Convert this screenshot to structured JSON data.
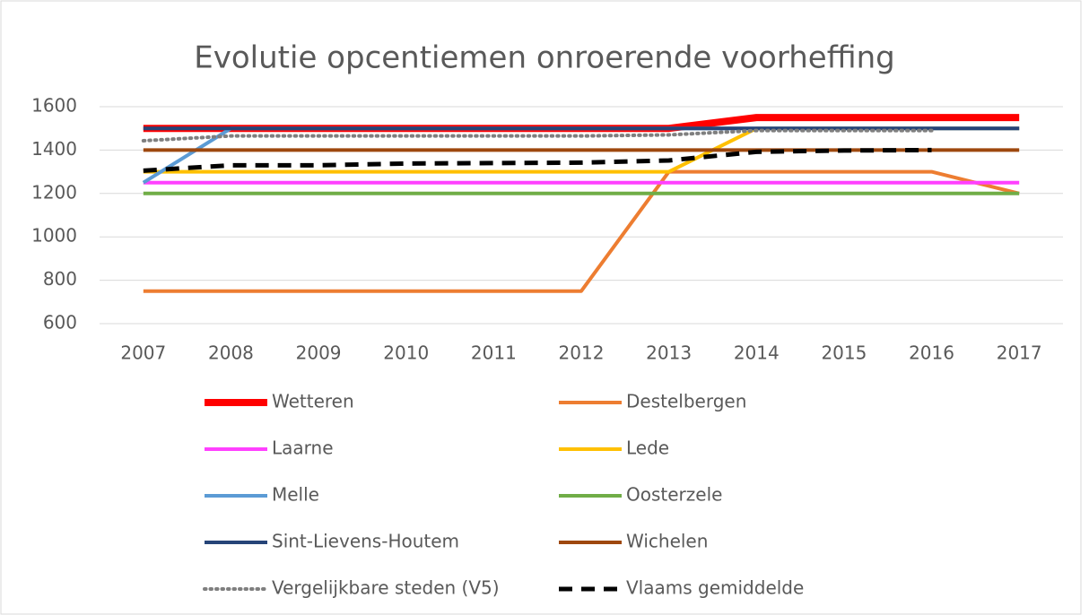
{
  "chart_data": {
    "type": "line",
    "title": "Evolutie opcentiemen onroerende voorheffing",
    "categories": [
      "2007",
      "2008",
      "2009",
      "2010",
      "2011",
      "2012",
      "2013",
      "2014",
      "2015",
      "2016",
      "2017"
    ],
    "ylim": [
      600,
      1600
    ],
    "yticks": [
      600,
      800,
      1000,
      1200,
      1400,
      1600
    ],
    "grid": true,
    "legend": "bottom",
    "series": [
      {
        "name": "Wetteren",
        "color": "#ff0000",
        "line_width": 8,
        "dash": "solid",
        "values": [
          1500,
          1500,
          1500,
          1500,
          1500,
          1500,
          1500,
          1550,
          1550,
          1550,
          1550
        ]
      },
      {
        "name": "Destelbergen",
        "color": "#ed7d31",
        "line_width": 4,
        "dash": "solid",
        "values": [
          750,
          750,
          750,
          750,
          750,
          750,
          1300,
          1300,
          1300,
          1300,
          1200
        ]
      },
      {
        "name": "Laarne",
        "color": "#ff40ff",
        "line_width": 4,
        "dash": "solid",
        "values": [
          1250,
          1250,
          1250,
          1250,
          1250,
          1250,
          1250,
          1250,
          1250,
          1250,
          1250
        ]
      },
      {
        "name": "Lede",
        "color": "#ffc000",
        "line_width": 4,
        "dash": "solid",
        "values": [
          1300,
          1300,
          1300,
          1300,
          1300,
          1300,
          1300,
          1500,
          1500,
          1500,
          1500
        ]
      },
      {
        "name": "Melle",
        "color": "#5b9bd5",
        "line_width": 4,
        "dash": "solid",
        "values": [
          1250,
          1500,
          1500,
          1500,
          1500,
          1500,
          1500,
          1500,
          1500,
          1500,
          1500
        ]
      },
      {
        "name": "Oosterzele",
        "color": "#70ad47",
        "line_width": 4,
        "dash": "solid",
        "values": [
          1200,
          1200,
          1200,
          1200,
          1200,
          1200,
          1200,
          1200,
          1200,
          1200,
          1200
        ]
      },
      {
        "name": "Sint-Lievens-Houtem",
        "color": "#264478",
        "line_width": 4,
        "dash": "solid",
        "values": [
          1500,
          1500,
          1500,
          1500,
          1500,
          1500,
          1500,
          1500,
          1500,
          1500,
          1500
        ]
      },
      {
        "name": "Wichelen",
        "color": "#9e480e",
        "line_width": 4,
        "dash": "solid",
        "values": [
          1400,
          1400,
          1400,
          1400,
          1400,
          1400,
          1400,
          1400,
          1400,
          1400,
          1400
        ]
      },
      {
        "name": "Vergelijkbare steden (V5)",
        "color": "#7f7f7f",
        "line_width": 4,
        "dash": "dot",
        "values": [
          1443,
          1465,
          1465,
          1465,
          1465,
          1465,
          1470,
          1490,
          1490,
          1490,
          null
        ]
      },
      {
        "name": "Vlaams gemiddelde",
        "color": "#000000",
        "line_width": 5,
        "dash": "dash",
        "values": [
          1305,
          1330,
          1330,
          1338,
          1340,
          1342,
          1352,
          1392,
          1398,
          1400,
          null
        ]
      }
    ]
  }
}
